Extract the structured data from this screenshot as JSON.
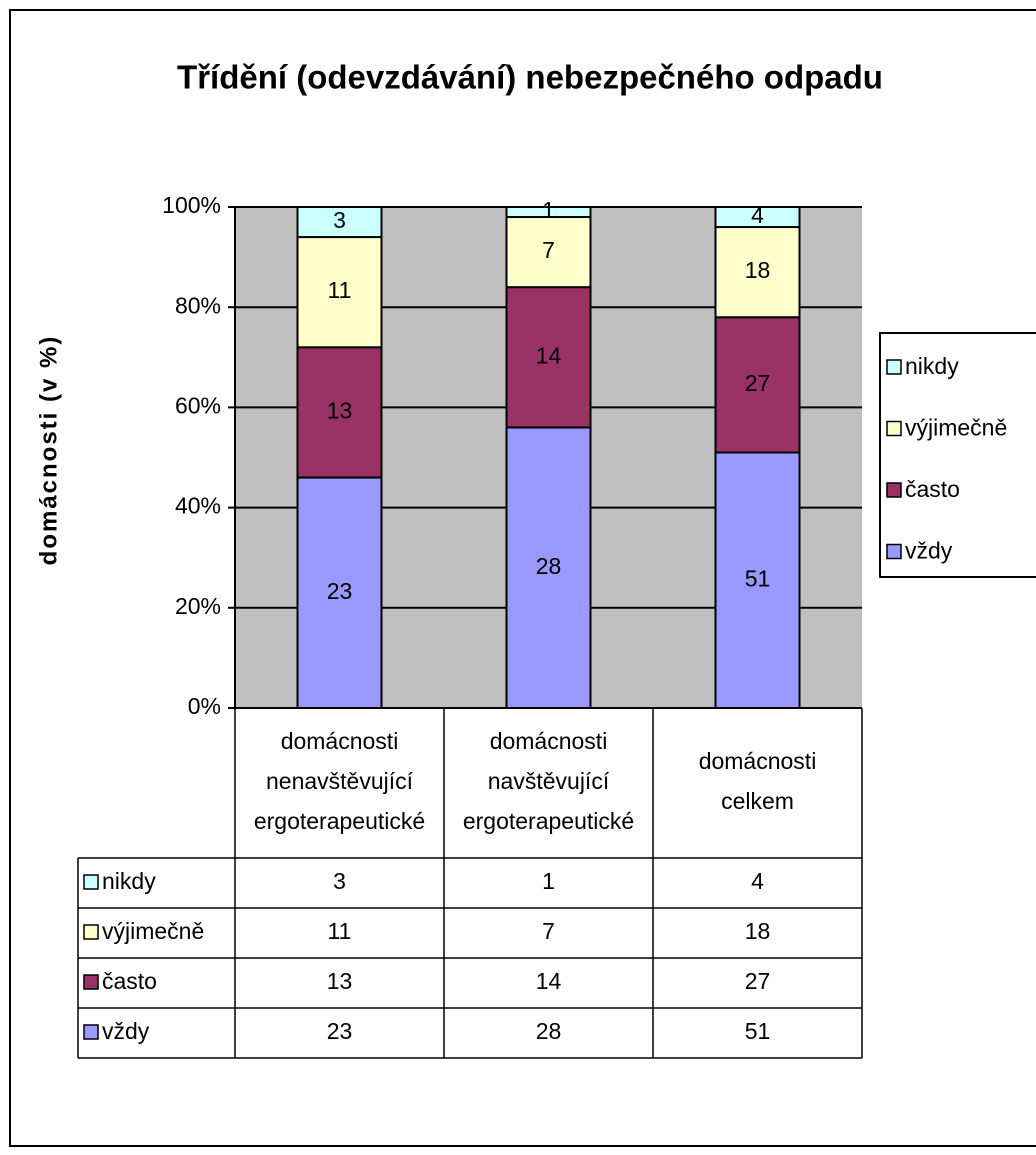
{
  "chart_data": {
    "type": "bar",
    "stacking": "percent",
    "title": "Třídění (odevzdávání) nebezpečného odpadu",
    "y_label": "domácnosti (v %)",
    "categories": [
      "domácnosti nenavštěvující ergoterapeutické",
      "domácnosti navštěvující ergoterapeutické",
      "domácnosti celkem"
    ],
    "series": [
      {
        "name": "vždy",
        "color": "#9999ff",
        "values": [
          23,
          28,
          51
        ]
      },
      {
        "name": "často",
        "color": "#993366",
        "values": [
          13,
          14,
          27
        ]
      },
      {
        "name": "výjimečně",
        "color": "#ffffcc",
        "values": [
          11,
          7,
          18
        ]
      },
      {
        "name": "nikdy",
        "color": "#ccffff",
        "values": [
          3,
          1,
          4
        ]
      }
    ],
    "ylim": [
      0,
      100
    ],
    "yticks": [
      {
        "value": 0,
        "label": "0%"
      },
      {
        "value": 20,
        "label": "20%"
      },
      {
        "value": 40,
        "label": "40%"
      },
      {
        "value": 60,
        "label": "60%"
      },
      {
        "value": 80,
        "label": "80%"
      },
      {
        "value": 100,
        "label": "100%"
      }
    ],
    "grid": true,
    "legend": "right",
    "data_table": true
  }
}
